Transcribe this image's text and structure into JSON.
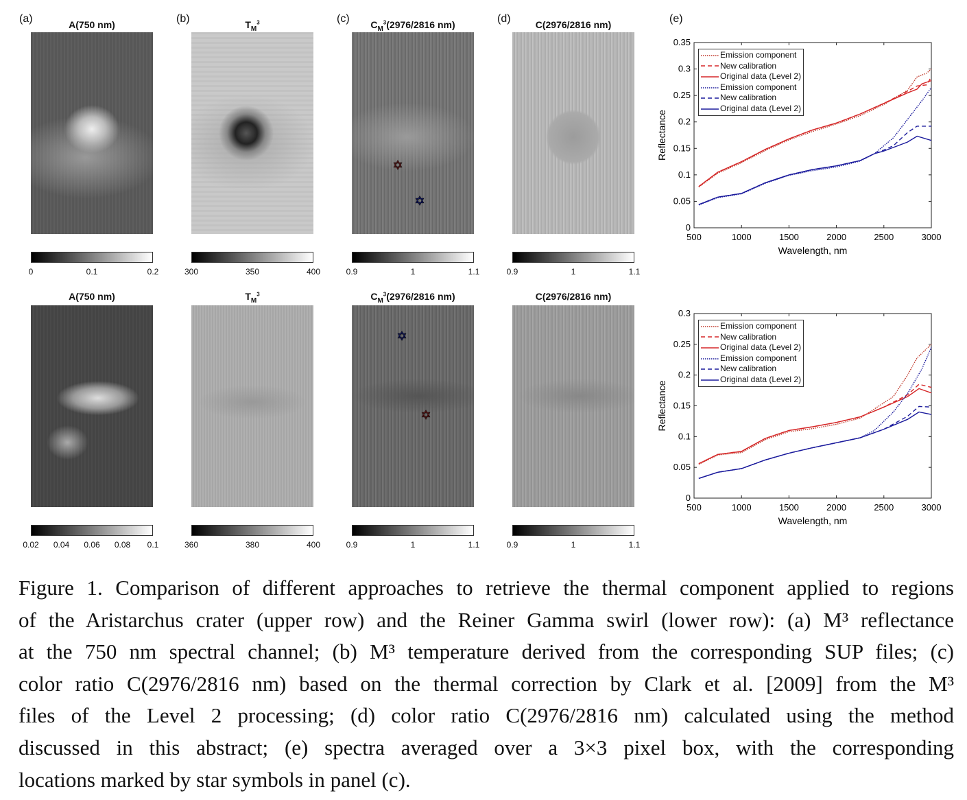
{
  "panels": {
    "labels": [
      "(a)",
      "(b)",
      "(c)",
      "(d)",
      "(e)"
    ],
    "top_titles": [
      {
        "main": "A(750 nm)",
        "sub": "",
        "sup": "",
        "rest": ""
      },
      {
        "main": "T",
        "sub": "M",
        "sup": "3",
        "rest": ""
      },
      {
        "main": "C",
        "sub": "M",
        "sup": "3",
        "rest": "(2976/2816 nm)"
      },
      {
        "main": "C(2976/2816 nm)",
        "sub": "",
        "sup": "",
        "rest": ""
      }
    ],
    "bottom_titles": [
      {
        "main": "A(750 nm)",
        "sub": "",
        "sup": "",
        "rest": ""
      },
      {
        "main": "T",
        "sub": "M",
        "sup": "3",
        "rest": ""
      },
      {
        "main": "C",
        "sub": "M",
        "sup": "3",
        "rest": "(2976/2816 nm)"
      },
      {
        "main": "C(2976/2816 nm)",
        "sub": "",
        "sup": "",
        "rest": ""
      }
    ],
    "top_colorbars": [
      [
        "0",
        "0.1",
        "0.2"
      ],
      [
        "300",
        "350",
        "400"
      ],
      [
        "0.9",
        "1",
        "1.1"
      ],
      [
        "0.9",
        "1",
        "1.1"
      ]
    ],
    "bottom_colorbars": [
      [
        "0.02",
        "0.04",
        "0.06",
        "0.08",
        "0.1"
      ],
      [
        "360",
        "380",
        "400"
      ],
      [
        "0.9",
        "1",
        "1.1"
      ],
      [
        "0.9",
        "1",
        "1.1"
      ]
    ],
    "star_symbol": "✡",
    "colors": {
      "red": "#d62728",
      "blue": "#1f2fd0"
    }
  },
  "chart_data": [
    {
      "type": "line",
      "title": "",
      "xlabel": "Wavelength, nm",
      "ylabel": "Reflectance",
      "xlim": [
        500,
        3000
      ],
      "ylim": [
        0,
        0.35
      ],
      "xticks": [
        "500",
        "1000",
        "1500",
        "2000",
        "2500",
        "3000"
      ],
      "yticks": [
        "0",
        "0.05",
        "0.1",
        "0.15",
        "0.2",
        "0.25",
        "0.3",
        "0.35"
      ],
      "legend_position": "top-left",
      "series": [
        {
          "name": "Emission component",
          "color": "#c0392b",
          "style": "dotted",
          "x": [
            550,
            750,
            1000,
            1250,
            1500,
            1750,
            2000,
            2250,
            2500,
            2750,
            2850,
            2950,
            3000
          ],
          "y": [
            0.077,
            0.103,
            0.123,
            0.146,
            0.166,
            0.182,
            0.196,
            0.212,
            0.233,
            0.26,
            0.285,
            0.292,
            0.3
          ]
        },
        {
          "name": "New calibration",
          "color": "#d62728",
          "style": "dashed",
          "x": [
            550,
            750,
            1000,
            1250,
            1500,
            1750,
            2000,
            2250,
            2500,
            2750,
            2850,
            2950,
            3000
          ],
          "y": [
            0.078,
            0.105,
            0.125,
            0.148,
            0.168,
            0.185,
            0.198,
            0.215,
            0.235,
            0.258,
            0.268,
            0.27,
            0.285
          ]
        },
        {
          "name": "Original data (Level 2)",
          "color": "#d62728",
          "style": "solid",
          "x": [
            550,
            750,
            1000,
            1250,
            1500,
            1750,
            2000,
            2250,
            2500,
            2750,
            2850,
            2900,
            3000
          ],
          "y": [
            0.078,
            0.105,
            0.125,
            0.148,
            0.168,
            0.185,
            0.198,
            0.215,
            0.235,
            0.255,
            0.262,
            0.272,
            0.278
          ]
        },
        {
          "name": "Emission component",
          "color": "#1a1a9c",
          "style": "dotted",
          "x": [
            550,
            750,
            1000,
            1250,
            1500,
            1750,
            2000,
            2250,
            2400,
            2500,
            2600,
            2750,
            2900,
            3000
          ],
          "y": [
            0.043,
            0.057,
            0.064,
            0.084,
            0.099,
            0.108,
            0.115,
            0.126,
            0.14,
            0.155,
            0.17,
            0.205,
            0.24,
            0.265
          ]
        },
        {
          "name": "New calibration",
          "color": "#1a1a9c",
          "style": "dashed",
          "x": [
            550,
            750,
            1000,
            1250,
            1500,
            1750,
            2000,
            2250,
            2400,
            2500,
            2600,
            2750,
            2850,
            3000
          ],
          "y": [
            0.044,
            0.058,
            0.065,
            0.085,
            0.1,
            0.11,
            0.117,
            0.127,
            0.14,
            0.147,
            0.155,
            0.18,
            0.192,
            0.192
          ]
        },
        {
          "name": "Original data (Level 2)",
          "color": "#1a1a9c",
          "style": "solid",
          "x": [
            550,
            750,
            1000,
            1250,
            1500,
            1750,
            2000,
            2250,
            2400,
            2500,
            2750,
            2850,
            3000
          ],
          "y": [
            0.044,
            0.058,
            0.065,
            0.085,
            0.1,
            0.11,
            0.117,
            0.127,
            0.14,
            0.145,
            0.162,
            0.173,
            0.165
          ]
        }
      ]
    },
    {
      "type": "line",
      "title": "",
      "xlabel": "Wavelength, nm",
      "ylabel": "Reflectance",
      "xlim": [
        500,
        3000
      ],
      "ylim": [
        0,
        0.3
      ],
      "xticks": [
        "500",
        "1000",
        "1500",
        "2000",
        "2500",
        "3000"
      ],
      "yticks": [
        "0",
        "0.05",
        "0.1",
        "0.15",
        "0.2",
        "0.25",
        "0.3"
      ],
      "legend_position": "top-left",
      "series": [
        {
          "name": "Emission component",
          "color": "#c0392b",
          "style": "dotted",
          "x": [
            550,
            750,
            1000,
            1250,
            1500,
            1750,
            2000,
            2250,
            2400,
            2600,
            2750,
            2850,
            3000
          ],
          "y": [
            0.055,
            0.07,
            0.074,
            0.095,
            0.108,
            0.113,
            0.12,
            0.13,
            0.145,
            0.165,
            0.2,
            0.228,
            0.25
          ]
        },
        {
          "name": "New calibration",
          "color": "#d62728",
          "style": "dashed",
          "x": [
            550,
            750,
            1000,
            1250,
            1500,
            1750,
            2000,
            2250,
            2500,
            2750,
            2870,
            3000
          ],
          "y": [
            0.056,
            0.071,
            0.076,
            0.097,
            0.11,
            0.116,
            0.123,
            0.132,
            0.148,
            0.168,
            0.185,
            0.18
          ]
        },
        {
          "name": "Original data (Level 2)",
          "color": "#d62728",
          "style": "solid",
          "x": [
            550,
            750,
            1000,
            1250,
            1500,
            1750,
            2000,
            2250,
            2500,
            2750,
            2870,
            3000
          ],
          "y": [
            0.056,
            0.071,
            0.076,
            0.097,
            0.11,
            0.116,
            0.123,
            0.132,
            0.148,
            0.165,
            0.178,
            0.171
          ]
        },
        {
          "name": "Emission component",
          "color": "#1a1a9c",
          "style": "dotted",
          "x": [
            550,
            750,
            1000,
            1250,
            1500,
            1750,
            2000,
            2250,
            2400,
            2600,
            2750,
            2900,
            3000
          ],
          "y": [
            0.032,
            0.042,
            0.048,
            0.062,
            0.073,
            0.082,
            0.09,
            0.098,
            0.11,
            0.14,
            0.17,
            0.21,
            0.245
          ]
        },
        {
          "name": "New calibration",
          "color": "#1a1a9c",
          "style": "dashed",
          "x": [
            550,
            750,
            1000,
            1250,
            1500,
            1750,
            2000,
            2250,
            2500,
            2750,
            2870,
            3000
          ],
          "y": [
            0.032,
            0.042,
            0.048,
            0.062,
            0.073,
            0.082,
            0.09,
            0.098,
            0.112,
            0.133,
            0.149,
            0.148
          ]
        },
        {
          "name": "Original data (Level 2)",
          "color": "#1a1a9c",
          "style": "solid",
          "x": [
            550,
            750,
            1000,
            1250,
            1500,
            1750,
            2000,
            2250,
            2500,
            2750,
            2870,
            3000
          ],
          "y": [
            0.032,
            0.042,
            0.048,
            0.062,
            0.073,
            0.082,
            0.09,
            0.098,
            0.112,
            0.128,
            0.14,
            0.136
          ]
        }
      ]
    }
  ],
  "caption": {
    "lines": [
      "Figure 1. Comparison of different approaches to retrieve the thermal component applied to regions",
      "of the Aristarchus crater (upper row) and the Reiner Gamma swirl (lower row): (a) M³ reflectance",
      "at the 750 nm spectral channel; (b) M³ temperature derived from the corresponding SUP files; (c)",
      "color ratio C(2976/2816 nm) based on the thermal correction by Clark et al. [2009] from the M³",
      "files of the Level 2 processing; (d) color ratio C(2976/2816 nm) calculated using the method",
      "discussed in this abstract; (e) spectra averaged over a 3×3 pixel box, with the corresponding",
      "locations marked by star symbols in panel (c)."
    ]
  }
}
